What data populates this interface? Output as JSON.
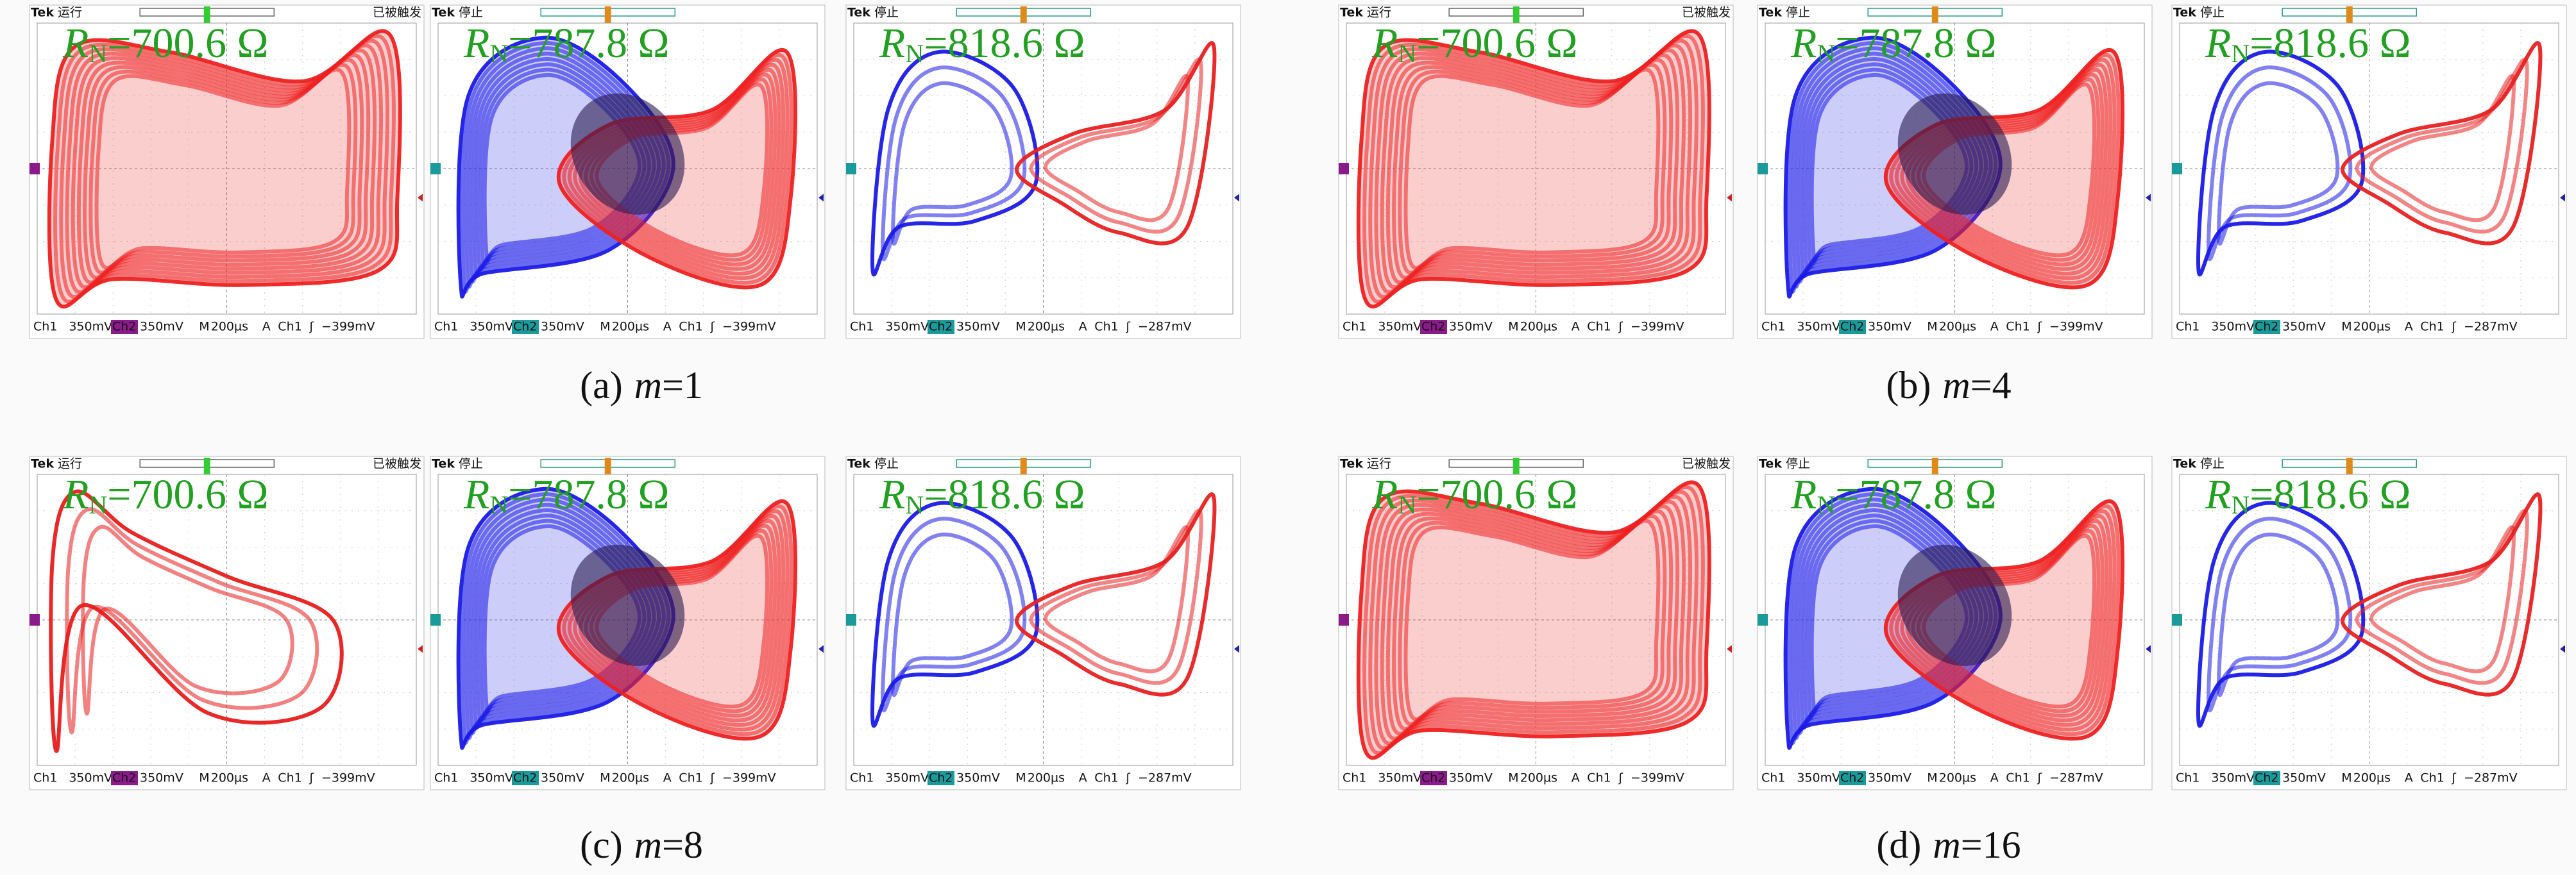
{
  "figures": [
    {
      "caption": {
        "label": "(a)",
        "var": "m",
        "value": "=1"
      },
      "panels": [
        {
          "brand": "Tek",
          "status": "运行",
          "trigger": "已被触发",
          "label": {
            "symbol": "R",
            "subscript": "N",
            "value": "=700.6 Ω"
          },
          "footer": [
            "Ch1",
            "350mV",
            "Ch2",
            "350mV",
            "M",
            "200µs",
            "A",
            "Ch1",
            "ʃ",
            "−399mV"
          ]
        },
        {
          "brand": "Tek",
          "status": "停止",
          "label": {
            "symbol": "R",
            "subscript": "N",
            "value": "=787.8 Ω"
          },
          "footer": [
            "Ch1",
            "350mV",
            "Ch2",
            "350mV",
            "M",
            "200µs",
            "A",
            "Ch1",
            "ʃ",
            "−399mV"
          ]
        },
        {
          "brand": "Tek",
          "status": "停止",
          "label": {
            "symbol": "R",
            "subscript": "N",
            "value": "=818.6  Ω"
          },
          "footer": [
            "Ch1",
            "350mV",
            "Ch2",
            "350mV",
            "M",
            "200µs",
            "A",
            "Ch1",
            "ʃ",
            "−287mV"
          ]
        }
      ]
    },
    {
      "caption": {
        "label": "(b)",
        "var": "m",
        "value": "=4"
      },
      "panels": [
        {
          "brand": "Tek",
          "status": "运行",
          "trigger": "已被触发",
          "label": {
            "symbol": "R",
            "subscript": "N",
            "value": "=700.6 Ω"
          },
          "footer": [
            "Ch1",
            "350mV",
            "Ch2",
            "350mV",
            "M",
            "200µs",
            "A",
            "Ch1",
            "ʃ",
            "−399mV"
          ]
        },
        {
          "brand": "Tek",
          "status": "停止",
          "label": {
            "symbol": "R",
            "subscript": "N",
            "value": "=787.8 Ω"
          },
          "footer": [
            "Ch1",
            "350mV",
            "Ch2",
            "350mV",
            "M",
            "200µs",
            "A",
            "Ch1",
            "ʃ",
            "−399mV"
          ]
        },
        {
          "brand": "Tek",
          "status": "停止",
          "label": {
            "symbol": "R",
            "subscript": "N",
            "value": "=818.6  Ω"
          },
          "footer": [
            "Ch1",
            "350mV",
            "Ch2",
            "350mV",
            "M",
            "200µs",
            "A",
            "Ch1",
            "ʃ",
            "−287mV"
          ]
        }
      ]
    },
    {
      "caption": {
        "label": "(c)",
        "var": "m",
        "value": "=8"
      },
      "panels": [
        {
          "brand": "Tek",
          "status": "运行",
          "trigger": "已被触发",
          "label": {
            "symbol": "R",
            "subscript": "N",
            "value": "=700.6 Ω"
          },
          "footer": [
            "Ch1",
            "350mV",
            "Ch2",
            "350mV",
            "M",
            "200µs",
            "A",
            "Ch1",
            "ʃ",
            "−399mV"
          ]
        },
        {
          "brand": "Tek",
          "status": "停止",
          "label": {
            "symbol": "R",
            "subscript": "N",
            "value": "=787.8 Ω"
          },
          "footer": [
            "Ch1",
            "350mV",
            "Ch2",
            "350mV",
            "M",
            "200µs",
            "A",
            "Ch1",
            "ʃ",
            "−399mV"
          ]
        },
        {
          "brand": "Tek",
          "status": "停止",
          "label": {
            "symbol": "R",
            "subscript": "N",
            "value": "=818.6 Ω"
          },
          "footer": [
            "Ch1",
            "350mV",
            "Ch2",
            "350mV",
            "M",
            "200µs",
            "A",
            "Ch1",
            "ʃ",
            "−287mV"
          ]
        }
      ]
    },
    {
      "caption": {
        "label": "(d)",
        "var": "m",
        "value": "=16"
      },
      "panels": [
        {
          "brand": "Tek",
          "status": "运行",
          "trigger": "已被触发",
          "label": {
            "symbol": "R",
            "subscript": "N",
            "value": "=700.6 Ω"
          },
          "footer": [
            "Ch1",
            "350mV",
            "Ch2",
            "350mV",
            "M",
            "200µs",
            "A",
            "Ch1",
            "ʃ",
            "−399mV"
          ]
        },
        {
          "brand": "Tek",
          "status": "停止",
          "label": {
            "symbol": "R",
            "subscript": "N",
            "value": "=787.8 Ω"
          },
          "footer": [
            "Ch1",
            "350mV",
            "Ch2",
            "350mV",
            "M",
            "200µs",
            "A",
            "Ch1",
            "ʃ",
            "−287mV"
          ]
        },
        {
          "brand": "Tek",
          "status": "停止",
          "label": {
            "symbol": "R",
            "subscript": "N",
            "value": "=818.6 Ω"
          },
          "footer": [
            "Ch1",
            "350mV",
            "Ch2",
            "350mV",
            "M",
            "200µs",
            "A",
            "Ch1",
            "ʃ",
            "−287mV"
          ]
        }
      ]
    }
  ]
}
